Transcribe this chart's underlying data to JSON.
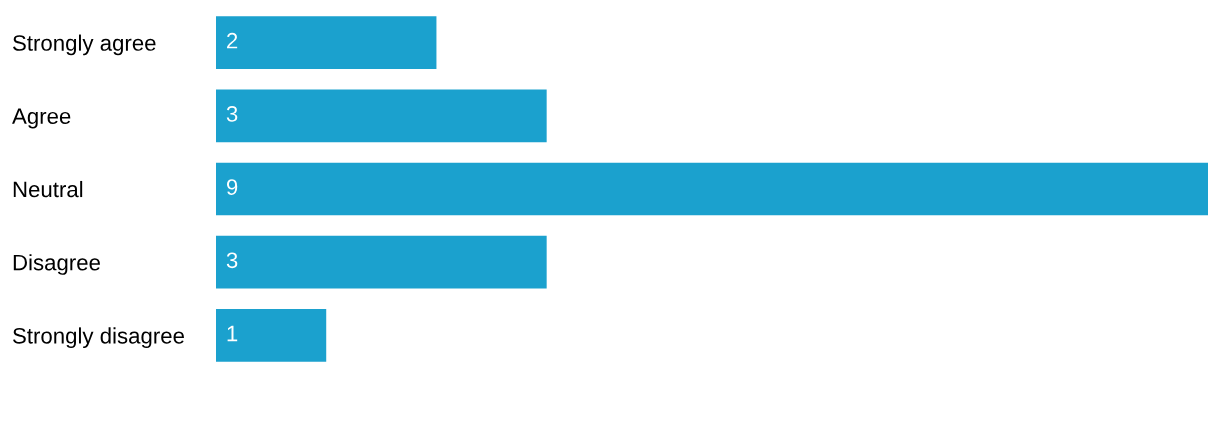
{
  "chart_data": {
    "type": "bar",
    "orientation": "horizontal",
    "categories": [
      "Strongly agree",
      "Agree",
      "Neutral",
      "Disagree",
      "Strongly disagree"
    ],
    "values": [
      2,
      3,
      9,
      3,
      1
    ],
    "color": "#1ba1ce",
    "xlim": [
      0,
      9
    ],
    "data_labels": true,
    "tick_labels": "y",
    "grid": false
  }
}
